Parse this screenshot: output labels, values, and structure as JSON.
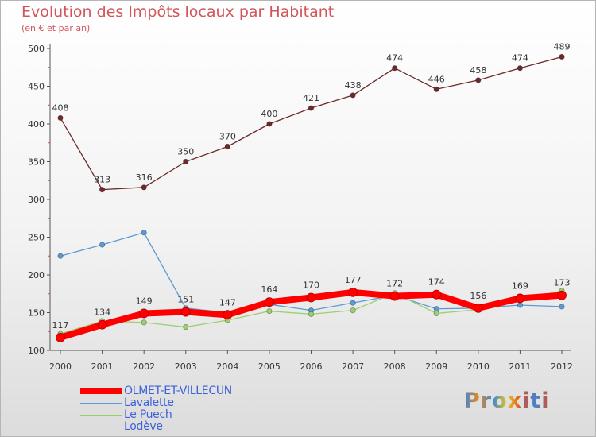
{
  "chart_data": {
    "type": "line",
    "title": "Evolution des Impôts locaux par Habitant",
    "subtitle": "(en € et par an)",
    "xlabel": "",
    "ylabel": "",
    "x": [
      "2000",
      "2001",
      "2002",
      "2003",
      "2004",
      "2005",
      "2006",
      "2007",
      "2008",
      "2009",
      "2010",
      "2011",
      "2012"
    ],
    "yticks": [
      100,
      150,
      200,
      250,
      300,
      350,
      400,
      450,
      500
    ],
    "ylim": [
      100,
      500
    ],
    "grid": false,
    "legend_position": "bottom-left",
    "series": [
      {
        "name": "OLMET-ET-VILLECUN",
        "color": "#ff0000",
        "values": [
          117,
          134,
          149,
          151,
          147,
          164,
          170,
          177,
          172,
          174,
          156,
          169,
          173
        ],
        "show_labels": true
      },
      {
        "name": "Lavalette",
        "color": "#5b9bd5",
        "values": [
          225,
          240,
          256,
          156,
          150,
          161,
          153,
          163,
          173,
          155,
          156,
          160,
          158
        ],
        "show_labels": false
      },
      {
        "name": "Le Puech",
        "color": "#9ad16f",
        "values": [
          122,
          139,
          137,
          131,
          140,
          152,
          148,
          153,
          176,
          149,
          154,
          167,
          179
        ],
        "show_labels": false
      },
      {
        "name": "Lodève",
        "color": "#6e2a2a",
        "values": [
          408,
          313,
          316,
          350,
          370,
          400,
          421,
          438,
          474,
          446,
          458,
          474,
          489
        ],
        "show_labels": true
      }
    ]
  },
  "legend": {
    "items": [
      "OLMET-ET-VILLECUN",
      "Lavalette",
      "Le Puech",
      "Lodève"
    ]
  },
  "logo": {
    "text": "Proxiti",
    "colors": [
      "#3d84d6",
      "#e58a1f",
      "#3d84d6",
      "#e5c81f",
      "#e54a1f",
      "#3d84d6",
      "#e54a1f"
    ]
  }
}
